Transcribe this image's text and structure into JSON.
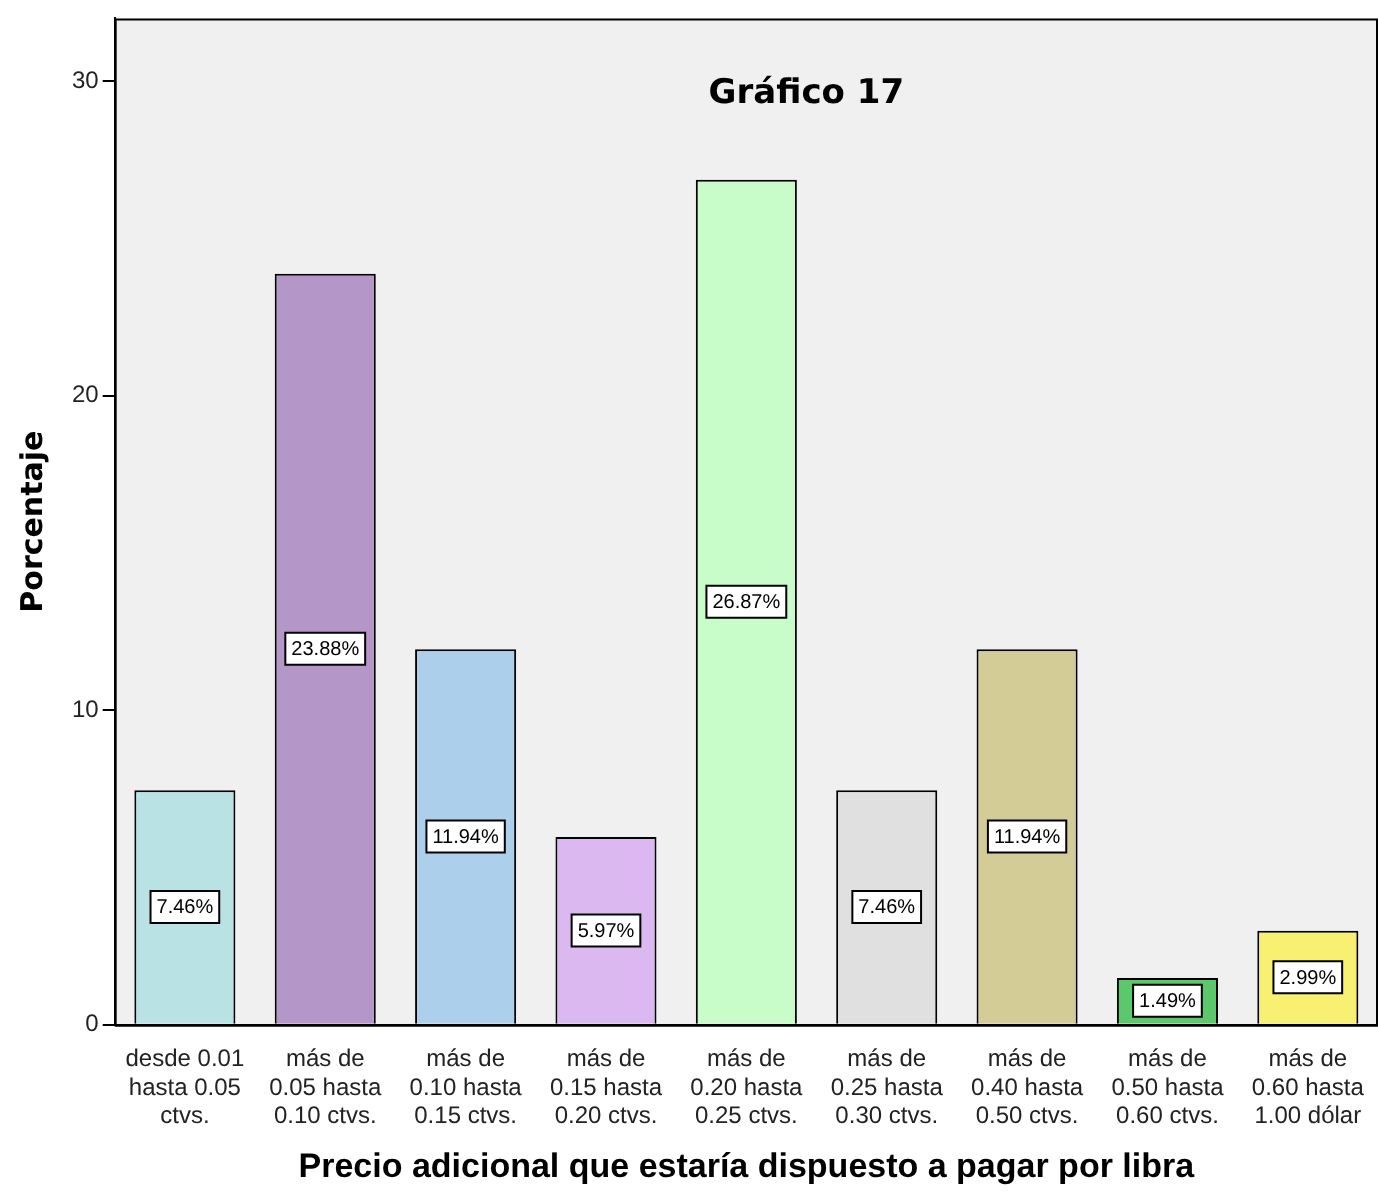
{
  "chart_data": {
    "type": "bar",
    "title": "Gráfico 17",
    "xlabel": "Precio adicional que estaría dispuesto a pagar por libra",
    "ylabel": "Porcentaje",
    "categories": [
      "desde 0.01 hasta 0.05 ctvs.",
      "más de 0.05 hasta 0.10 ctvs.",
      "más de 0.10 hasta 0.15 ctvs.",
      "más de 0.15 hasta 0.20 ctvs.",
      "más de 0.20 hasta 0.25 ctvs.",
      "más de 0.25 hasta 0.30 ctvs.",
      "más de 0.40 hasta 0.50 ctvs.",
      "más de 0.50 hasta 0.60 ctvs.",
      "más de 0.60 hasta 1.00 dólar"
    ],
    "values": [
      7.46,
      23.88,
      11.94,
      5.97,
      26.87,
      7.46,
      11.94,
      1.49,
      2.99
    ],
    "colors": [
      "#b8e2e4",
      "#b596c9",
      "#acd0ec",
      "#dcb8f0",
      "#c8fcc8",
      "#e0e0e0",
      "#d4cc96",
      "#5cc86c",
      "#f8f070"
    ],
    "value_labels": [
      "7.46%",
      "23.88%",
      "11.94%",
      "5.97%",
      "26.87%",
      "7.46%",
      "11.94%",
      "1.49%",
      "2.99%"
    ],
    "ylim": [
      0,
      32
    ],
    "yticks": [
      0,
      10,
      20,
      30
    ],
    "grid": false,
    "legend": false
  }
}
